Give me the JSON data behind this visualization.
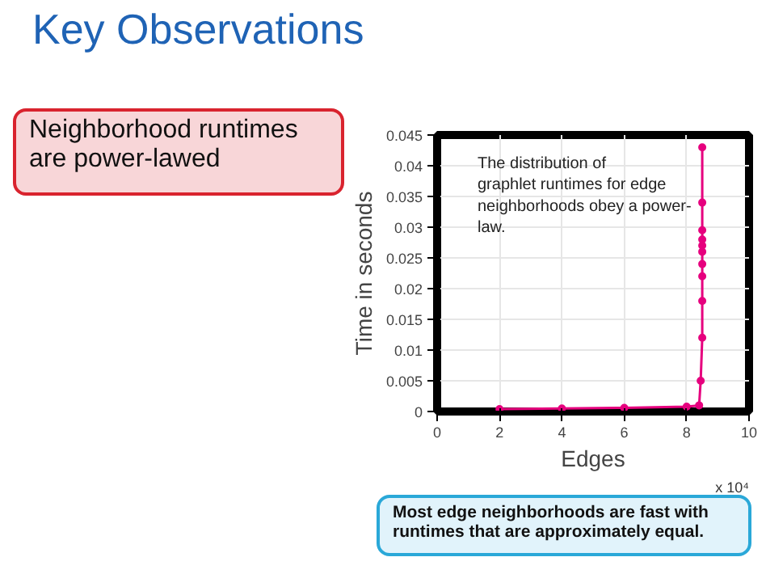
{
  "chart_data": {
    "type": "line",
    "title": "Key Observations",
    "xlabel": "Edges",
    "ylabel": "Time in seconds",
    "x": [
      2,
      4,
      6,
      8,
      8.4,
      8.45,
      8.5,
      8.5,
      8.5,
      8.5,
      8.5,
      8.5,
      8.5,
      8.5,
      8.5,
      8.5
    ],
    "series": [
      {
        "color": "#e6007e",
        "values": [
          0.0004,
          0.0005,
          0.0006,
          0.0008,
          0.001,
          0.005,
          0.012,
          0.018,
          0.022,
          0.024,
          0.026,
          0.027,
          0.028,
          0.0295,
          0.034,
          0.043
        ]
      }
    ],
    "marker": "circle",
    "line_style": "solid",
    "grid": true,
    "xlim": [
      0,
      10
    ],
    "ylim": [
      0,
      0.045
    ],
    "xticks": [
      0,
      2,
      4,
      6,
      8,
      10
    ],
    "yticks": [
      0,
      0.005,
      0.01,
      0.015,
      0.02,
      0.025,
      0.03,
      0.035,
      0.04,
      0.045
    ],
    "annotations": [
      "x 10⁴",
      "The distribution of graphlet runtimes for edge neighborhoods obey a power-law.",
      "Neighborhood runtimes are power-lawed",
      "Most edge neighborhoods are fast with runtimes that are approximately equal."
    ]
  }
}
